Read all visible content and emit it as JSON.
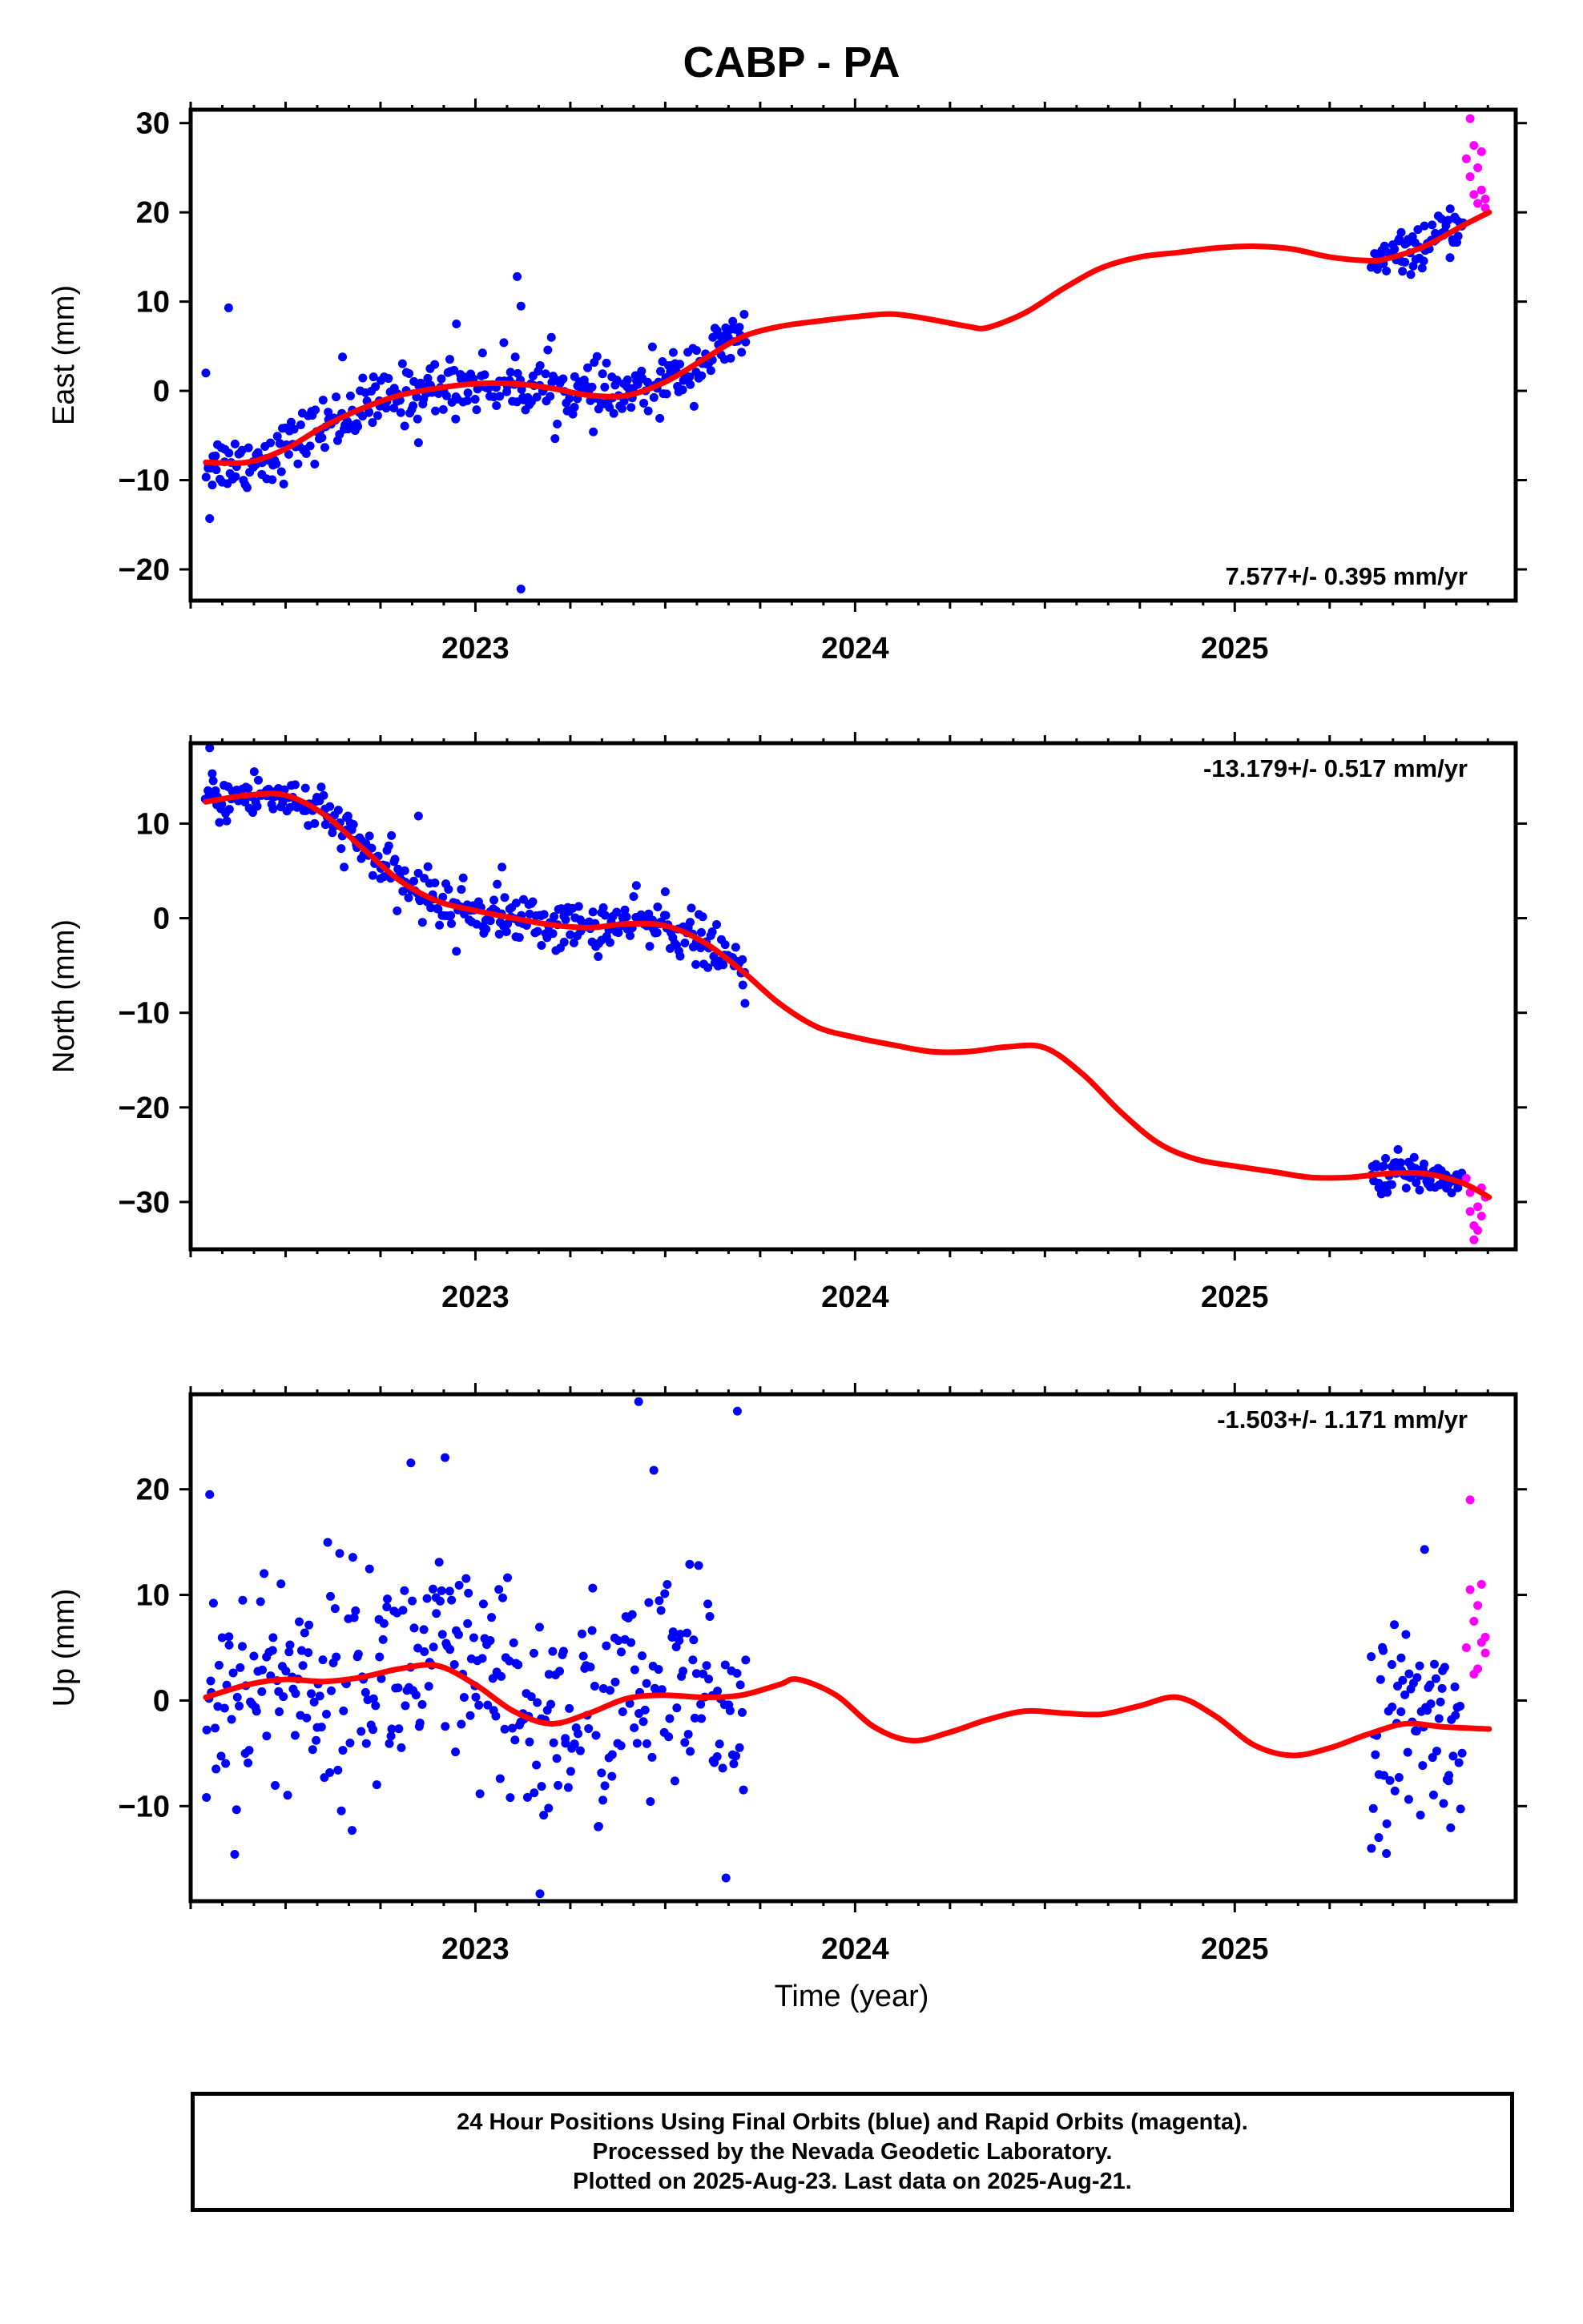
{
  "title": "CABP - PA",
  "x_axis_label": "Time (year)",
  "caption": [
    "24 Hour Positions Using Final Orbits (blue) and Rapid Orbits (magenta).",
    "Processed by the Nevada Geodetic Laboratory.",
    "Plotted on 2025-Aug-23. Last data on 2025-Aug-21."
  ],
  "colors": {
    "final": "#0000ff",
    "rapid": "#ff00ff",
    "model": "#ff0000",
    "frame": "#000000"
  },
  "chart_data": [
    {
      "type": "scatter",
      "component": "east",
      "ylabel": "East (mm)",
      "velocity_label": "7.577+/- 0.395 mm/yr",
      "xlim": [
        2022.25,
        2025.74
      ],
      "ylim": [
        -23.5,
        31.5
      ],
      "x_ticks": [
        2023,
        2024,
        2025
      ],
      "y_ticks": [
        -20,
        -10,
        0,
        10,
        20,
        30
      ],
      "final_segments": [
        {
          "x_range": [
            2022.29,
            2023.71
          ],
          "profile": "east_a",
          "scatter_mm": 1.6,
          "count": 360
        },
        {
          "x_range": [
            2025.36,
            2025.6
          ],
          "profile": "east_b",
          "scatter_mm": 1.1,
          "count": 70
        }
      ],
      "rapid_points": [
        [
          2025.61,
          26.0
        ],
        [
          2025.62,
          30.5
        ],
        [
          2025.62,
          24.0
        ],
        [
          2025.63,
          22.0
        ],
        [
          2025.63,
          27.5
        ],
        [
          2025.64,
          21.0
        ],
        [
          2025.64,
          25.0
        ],
        [
          2025.65,
          26.8
        ],
        [
          2025.65,
          22.5
        ],
        [
          2025.66,
          20.5
        ],
        [
          2025.66,
          21.5
        ]
      ],
      "outliers": [
        [
          2022.29,
          2.0
        ],
        [
          2022.3,
          -14.3
        ],
        [
          2022.35,
          9.3
        ],
        [
          2022.95,
          7.5
        ],
        [
          2023.11,
          12.8
        ],
        [
          2023.12,
          9.5
        ],
        [
          2023.12,
          -22.2
        ],
        [
          2022.85,
          -5.8
        ],
        [
          2022.65,
          3.8
        ],
        [
          2023.2,
          6.0
        ]
      ],
      "model": [
        [
          2022.29,
          -8.0
        ],
        [
          2022.4,
          -8.0
        ],
        [
          2022.5,
          -6.5
        ],
        [
          2022.6,
          -4.0
        ],
        [
          2022.7,
          -2.0
        ],
        [
          2022.8,
          -0.5
        ],
        [
          2022.9,
          0.3
        ],
        [
          2023.0,
          0.8
        ],
        [
          2023.1,
          0.8
        ],
        [
          2023.2,
          0.3
        ],
        [
          2023.3,
          -0.5
        ],
        [
          2023.4,
          -0.5
        ],
        [
          2023.5,
          1.0
        ],
        [
          2023.6,
          3.5
        ],
        [
          2023.7,
          6.0
        ],
        [
          2023.8,
          7.2
        ],
        [
          2023.9,
          7.8
        ],
        [
          2024.0,
          8.3
        ],
        [
          2024.1,
          8.6
        ],
        [
          2024.2,
          8.0
        ],
        [
          2024.3,
          7.2
        ],
        [
          2024.35,
          7.1
        ],
        [
          2024.45,
          8.8
        ],
        [
          2024.55,
          11.5
        ],
        [
          2024.65,
          13.8
        ],
        [
          2024.75,
          15.0
        ],
        [
          2024.85,
          15.5
        ],
        [
          2024.95,
          16.0
        ],
        [
          2025.05,
          16.2
        ],
        [
          2025.15,
          15.9
        ],
        [
          2025.25,
          15.0
        ],
        [
          2025.35,
          14.6
        ],
        [
          2025.4,
          14.8
        ],
        [
          2025.5,
          16.2
        ],
        [
          2025.6,
          18.5
        ],
        [
          2025.67,
          20.0
        ]
      ]
    },
    {
      "type": "scatter",
      "component": "north",
      "ylabel": "North (mm)",
      "velocity_label": "-13.179+/- 0.517 mm/yr",
      "xlim": [
        2022.25,
        2025.74
      ],
      "ylim": [
        -35,
        18.5
      ],
      "x_ticks": [
        2023,
        2024,
        2025
      ],
      "y_ticks": [
        -30,
        -20,
        -10,
        0,
        10
      ],
      "final_segments": [
        {
          "x_range": [
            2022.29,
            2023.71
          ],
          "profile": "north_a",
          "scatter_mm": 1.3,
          "count": 360
        },
        {
          "x_range": [
            2025.36,
            2025.6
          ],
          "profile": "north_b",
          "scatter_mm": 1.0,
          "count": 70
        }
      ],
      "rapid_points": [
        [
          2025.61,
          -27.5
        ],
        [
          2025.62,
          -29.0
        ],
        [
          2025.62,
          -31.0
        ],
        [
          2025.63,
          -32.5
        ],
        [
          2025.63,
          -34.0
        ],
        [
          2025.64,
          -30.5
        ],
        [
          2025.64,
          -33.0
        ],
        [
          2025.65,
          -28.5
        ],
        [
          2025.65,
          -31.5
        ],
        [
          2025.66,
          -29.5
        ]
      ],
      "outliers": [
        [
          2022.3,
          18.0
        ],
        [
          2022.85,
          10.8
        ],
        [
          2023.07,
          5.4
        ],
        [
          2022.95,
          -3.5
        ],
        [
          2023.5,
          2.8
        ],
        [
          2023.71,
          -9.0
        ]
      ],
      "model": [
        [
          2022.29,
          12.3
        ],
        [
          2022.4,
          13.0
        ],
        [
          2022.5,
          13.0
        ],
        [
          2022.6,
          11.0
        ],
        [
          2022.7,
          7.5
        ],
        [
          2022.8,
          4.0
        ],
        [
          2022.9,
          1.8
        ],
        [
          2023.0,
          0.8
        ],
        [
          2023.1,
          0.0
        ],
        [
          2023.2,
          -0.7
        ],
        [
          2023.3,
          -1.0
        ],
        [
          2023.4,
          -0.6
        ],
        [
          2023.5,
          -0.8
        ],
        [
          2023.6,
          -2.5
        ],
        [
          2023.7,
          -5.5
        ],
        [
          2023.8,
          -9.0
        ],
        [
          2023.9,
          -11.5
        ],
        [
          2024.0,
          -12.6
        ],
        [
          2024.1,
          -13.4
        ],
        [
          2024.2,
          -14.1
        ],
        [
          2024.3,
          -14.1
        ],
        [
          2024.4,
          -13.6
        ],
        [
          2024.5,
          -13.7
        ],
        [
          2024.6,
          -16.5
        ],
        [
          2024.7,
          -20.5
        ],
        [
          2024.8,
          -23.8
        ],
        [
          2024.9,
          -25.5
        ],
        [
          2025.0,
          -26.2
        ],
        [
          2025.1,
          -26.8
        ],
        [
          2025.2,
          -27.4
        ],
        [
          2025.3,
          -27.4
        ],
        [
          2025.4,
          -27.0
        ],
        [
          2025.5,
          -27.0
        ],
        [
          2025.6,
          -28.0
        ],
        [
          2025.67,
          -29.5
        ]
      ]
    },
    {
      "type": "scatter",
      "component": "up",
      "ylabel": "Up (mm)",
      "velocity_label": "-1.503+/- 1.171 mm/yr",
      "xlim": [
        2022.25,
        2025.74
      ],
      "ylim": [
        -19,
        29
      ],
      "x_ticks": [
        2023,
        2024,
        2025
      ],
      "y_ticks": [
        -10,
        0,
        10,
        20
      ],
      "final_segments": [
        {
          "x_range": [
            2022.29,
            2023.71
          ],
          "profile": "up_a",
          "scatter_mm": 5.5,
          "count": 360
        },
        {
          "x_range": [
            2025.36,
            2025.6
          ],
          "profile": "up_b",
          "scatter_mm": 4.5,
          "count": 70
        }
      ],
      "rapid_points": [
        [
          2025.61,
          5.0
        ],
        [
          2025.62,
          19.0
        ],
        [
          2025.62,
          10.5
        ],
        [
          2025.63,
          2.5
        ],
        [
          2025.63,
          7.5
        ],
        [
          2025.64,
          9.0
        ],
        [
          2025.64,
          3.0
        ],
        [
          2025.65,
          5.5
        ],
        [
          2025.65,
          11.0
        ],
        [
          2025.66,
          4.5
        ],
        [
          2025.66,
          6.0
        ]
      ],
      "outliers": [
        [
          2022.3,
          19.5
        ],
        [
          2022.83,
          22.5
        ],
        [
          2022.92,
          23.0
        ],
        [
          2023.43,
          28.3
        ],
        [
          2023.69,
          27.4
        ],
        [
          2023.47,
          21.8
        ],
        [
          2023.17,
          -18.3
        ],
        [
          2023.66,
          -16.8
        ],
        [
          2025.36,
          -14.0
        ],
        [
          2025.5,
          14.3
        ]
      ],
      "model": [
        [
          2022.29,
          0.3
        ],
        [
          2022.4,
          1.5
        ],
        [
          2022.5,
          2.0
        ],
        [
          2022.6,
          1.8
        ],
        [
          2022.7,
          2.2
        ],
        [
          2022.8,
          3.0
        ],
        [
          2022.9,
          3.3
        ],
        [
          2023.0,
          1.5
        ],
        [
          2023.1,
          -1.0
        ],
        [
          2023.2,
          -2.2
        ],
        [
          2023.3,
          -1.2
        ],
        [
          2023.4,
          0.2
        ],
        [
          2023.5,
          0.5
        ],
        [
          2023.6,
          0.3
        ],
        [
          2023.7,
          0.5
        ],
        [
          2023.8,
          1.5
        ],
        [
          2023.85,
          2.0
        ],
        [
          2023.95,
          0.5
        ],
        [
          2024.05,
          -2.5
        ],
        [
          2024.15,
          -3.8
        ],
        [
          2024.25,
          -3.0
        ],
        [
          2024.35,
          -1.8
        ],
        [
          2024.45,
          -1.0
        ],
        [
          2024.55,
          -1.2
        ],
        [
          2024.65,
          -1.3
        ],
        [
          2024.75,
          -0.5
        ],
        [
          2024.85,
          0.3
        ],
        [
          2024.95,
          -1.5
        ],
        [
          2025.05,
          -4.2
        ],
        [
          2025.15,
          -5.2
        ],
        [
          2025.25,
          -4.5
        ],
        [
          2025.35,
          -3.2
        ],
        [
          2025.45,
          -2.2
        ],
        [
          2025.55,
          -2.5
        ],
        [
          2025.67,
          -2.7
        ]
      ]
    }
  ]
}
